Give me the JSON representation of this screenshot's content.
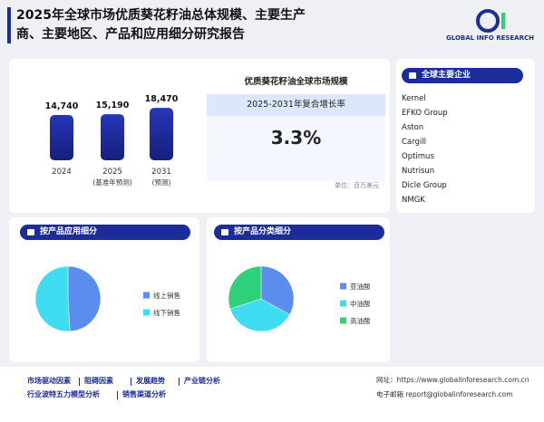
{
  "header": {
    "title": "2025年全球市场优质葵花籽油总体规模、主要生产商、主要地区、产品和应用细分研究报告",
    "logo": "GLOBAL INFO RESEARCH"
  },
  "market": {
    "title": "优质葵花籽油全球市场规模",
    "cagr_label": "2025-2031年复合增长率",
    "cagr": "3.3%",
    "unit": "单位：百万美元"
  },
  "chart_data": [
    {
      "type": "bar",
      "categories": [
        "2024",
        "2025",
        "2031"
      ],
      "category_notes": [
        null,
        "(基准年预测)",
        "(预测)"
      ],
      "values": [
        14740,
        15190,
        18470
      ],
      "value_labels": [
        "14,740",
        "15,190",
        "18,470"
      ],
      "color": "#2536b8"
    },
    {
      "type": "pie",
      "title": "按产品应用细分",
      "categories": [
        "线上销售",
        "线下销售"
      ],
      "values": [
        49,
        51
      ],
      "colors": [
        "#5b8def",
        "#40dcf2"
      ]
    },
    {
      "type": "pie",
      "title": "按产品分类细分",
      "categories": [
        "亚油酸",
        "中油酸",
        "高油酸"
      ],
      "values": [
        33,
        37,
        30
      ],
      "colors": [
        "#5b8def",
        "#40dcf2",
        "#2fd07a"
      ]
    }
  ],
  "companies": {
    "title": "全球主要企业",
    "list": [
      "Kernel",
      "EFKO Group",
      "Aston",
      "Cargill",
      "Optimus",
      "Nutrisun",
      "Dicle Group",
      "NMGK"
    ]
  },
  "footer": {
    "links": [
      "市场驱动因素",
      "阻碍因素",
      "发展趋势",
      "产业链分析",
      "行业波特五力模型分析",
      "销售渠道分析"
    ],
    "website": "网址：https://www.globalinforesearch.com.cn",
    "email": "电子邮箱 report@globalinforesearch.com"
  }
}
